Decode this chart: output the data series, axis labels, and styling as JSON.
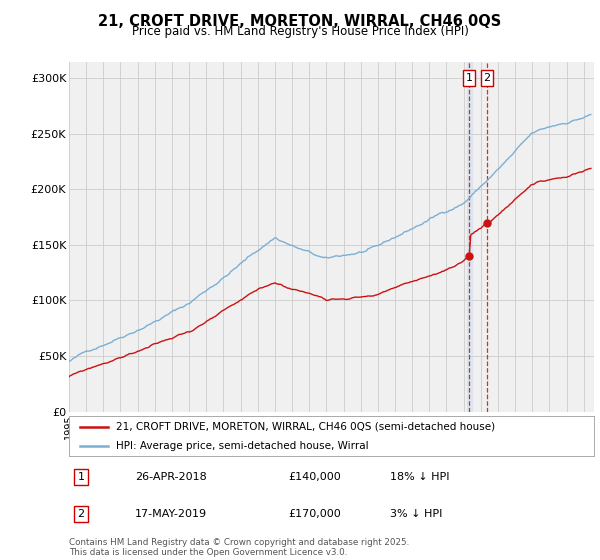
{
  "title": "21, CROFT DRIVE, MORETON, WIRRAL, CH46 0QS",
  "subtitle": "Price paid vs. HM Land Registry's House Price Index (HPI)",
  "hpi_label": "HPI: Average price, semi-detached house, Wirral",
  "property_label": "21, CROFT DRIVE, MORETON, WIRRAL, CH46 0QS (semi-detached house)",
  "hpi_color": "#7bafd4",
  "property_color": "#cc1111",
  "yticks": [
    0,
    50000,
    100000,
    150000,
    200000,
    250000,
    300000
  ],
  "ytick_labels": [
    "£0",
    "£50K",
    "£100K",
    "£150K",
    "£200K",
    "£250K",
    "£300K"
  ],
  "transactions": [
    {
      "num": 1,
      "date": "26-APR-2018",
      "price": 140000,
      "price_str": "£140,000",
      "hpi_diff": "18% ↓ HPI",
      "year": 2018.32
    },
    {
      "num": 2,
      "date": "17-MAY-2019",
      "price": 170000,
      "price_str": "£170,000",
      "hpi_diff": "3% ↓ HPI",
      "year": 2019.37
    }
  ],
  "footer": "Contains HM Land Registry data © Crown copyright and database right 2025.\nThis data is licensed under the Open Government Licence v3.0.",
  "grid_color": "#cccccc",
  "background_color": "#f0f0f0"
}
